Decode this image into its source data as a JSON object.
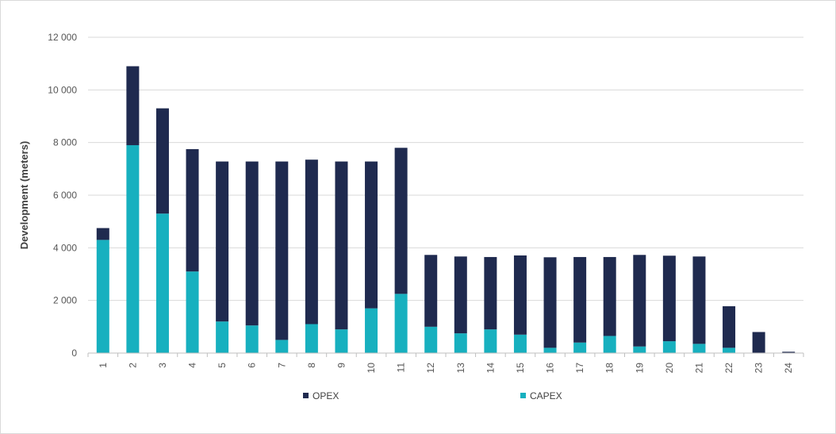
{
  "chart_data": {
    "type": "bar",
    "stacked": true,
    "title": "",
    "xlabel": "",
    "ylabel": "Development (meters)",
    "ylim": [
      0,
      12000
    ],
    "yticks": [
      0,
      2000,
      4000,
      6000,
      8000,
      10000,
      12000
    ],
    "ytick_labels": [
      "0",
      "2 000",
      "4 000",
      "6 000",
      "8 000",
      "10 000",
      "12 000"
    ],
    "grid": true,
    "legend_position": "bottom",
    "categories": [
      "1",
      "2",
      "3",
      "4",
      "5",
      "6",
      "7",
      "8",
      "9",
      "10",
      "11",
      "12",
      "13",
      "14",
      "15",
      "16",
      "17",
      "18",
      "19",
      "20",
      "21",
      "22",
      "23",
      "24"
    ],
    "series": [
      {
        "name": "CAPEX",
        "color": "#17b0bf",
        "values": [
          4300,
          7900,
          5300,
          3100,
          1200,
          1050,
          500,
          1100,
          900,
          1700,
          2250,
          1000,
          750,
          900,
          700,
          200,
          400,
          650,
          250,
          450,
          350,
          200,
          0,
          0
        ]
      },
      {
        "name": "OPEX",
        "color": "#1f2a4f",
        "values": [
          450,
          3000,
          4000,
          4650,
          6080,
          6230,
          6780,
          6250,
          6380,
          5580,
          5550,
          2730,
          2920,
          2750,
          3010,
          3440,
          3250,
          3000,
          3480,
          3250,
          3320,
          1580,
          800,
          50
        ]
      }
    ],
    "legend": [
      {
        "name": "OPEX",
        "color": "#1f2a4f"
      },
      {
        "name": "CAPEX",
        "color": "#17b0bf"
      }
    ]
  }
}
